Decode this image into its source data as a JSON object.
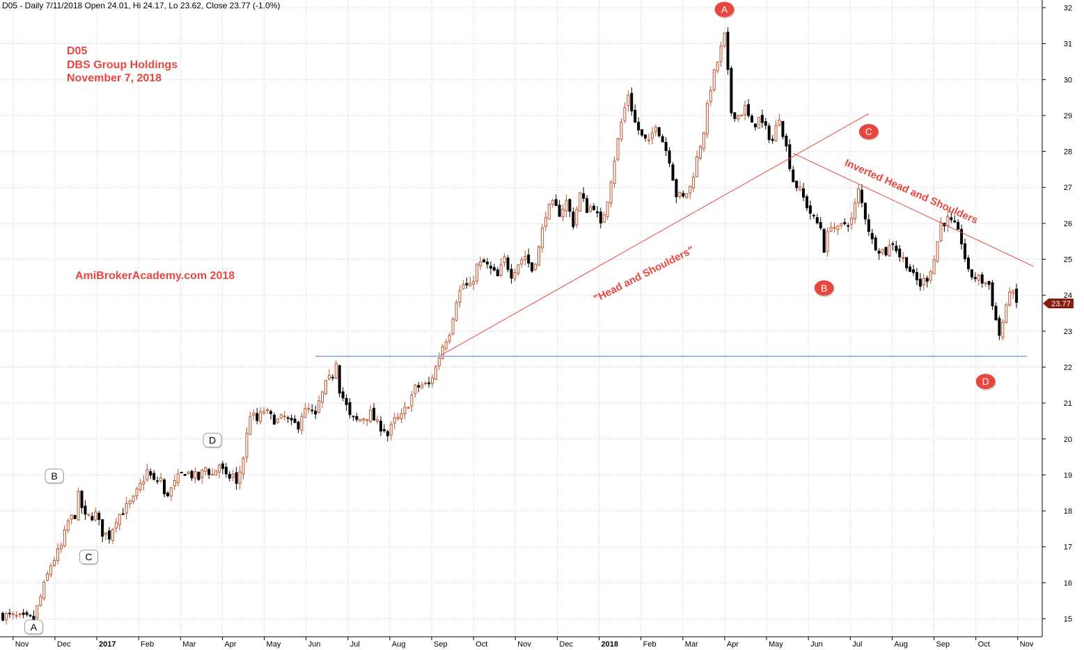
{
  "header": {
    "text": "D05 - Daily 7/11/2018 Open 24.01, Hi 24.17, Lo 23.62, Close 23.77 (-1.0%)"
  },
  "title_block": {
    "symbol": "D05",
    "company": "DBS Group Holdings",
    "date": "November 7, 2018"
  },
  "watermark": "AmiBrokerAcademy.com  2018",
  "colors": {
    "up_candle": "#c0502a",
    "down_candle": "#000000",
    "trendline": "#e8473f",
    "support_line": "#9fb8e6",
    "grid": "#c8c8c8",
    "annotation": "#e8473f",
    "last_price_badge": "#8b1a12"
  },
  "chart_data": {
    "type": "candlestick",
    "ylim": [
      14.5,
      32.3
    ],
    "y_ticks": [
      15,
      16,
      17,
      18,
      19,
      20,
      21,
      22,
      23,
      24,
      25,
      26,
      27,
      28,
      29,
      30,
      31,
      32
    ],
    "x_axis_months": [
      {
        "label": "Nov",
        "bold": false
      },
      {
        "label": "Dec",
        "bold": false
      },
      {
        "label": "2017",
        "bold": true
      },
      {
        "label": "Feb",
        "bold": false
      },
      {
        "label": "Mar",
        "bold": false
      },
      {
        "label": "Apr",
        "bold": false
      },
      {
        "label": "May",
        "bold": false
      },
      {
        "label": "Jun",
        "bold": false
      },
      {
        "label": "Jul",
        "bold": false
      },
      {
        "label": "Aug",
        "bold": false
      },
      {
        "label": "Sep",
        "bold": false
      },
      {
        "label": "Oct",
        "bold": false
      },
      {
        "label": "Nov",
        "bold": false
      },
      {
        "label": "Dec",
        "bold": false
      },
      {
        "label": "2018",
        "bold": true
      },
      {
        "label": "Feb",
        "bold": false
      },
      {
        "label": "Mar",
        "bold": false
      },
      {
        "label": "Apr",
        "bold": false
      },
      {
        "label": "May",
        "bold": false
      },
      {
        "label": "Jun",
        "bold": false
      },
      {
        "label": "Jul",
        "bold": false
      },
      {
        "label": "Aug",
        "bold": false
      },
      {
        "label": "Sep",
        "bold": false
      },
      {
        "label": "Oct",
        "bold": false
      },
      {
        "label": "Nov",
        "bold": false
      }
    ],
    "last_price": 23.77,
    "last_price_label": "23.77",
    "price_path": [
      [
        0,
        15.1
      ],
      [
        6,
        15.0
      ],
      [
        9,
        15.0
      ],
      [
        11,
        15.6
      ],
      [
        14,
        16.5
      ],
      [
        17,
        17.0
      ],
      [
        19,
        17.7
      ],
      [
        21,
        17.9
      ],
      [
        22,
        18.4
      ],
      [
        24,
        17.8
      ],
      [
        27,
        17.9
      ],
      [
        29,
        17.4
      ],
      [
        31,
        17.3
      ],
      [
        33,
        17.8
      ],
      [
        35,
        18.0
      ],
      [
        37,
        18.2
      ],
      [
        38,
        18.3
      ],
      [
        40,
        18.7
      ],
      [
        42,
        19.1
      ],
      [
        44,
        18.8
      ],
      [
        46,
        18.9
      ],
      [
        47,
        18.4
      ],
      [
        49,
        18.6
      ],
      [
        51,
        18.9
      ],
      [
        53,
        19.1
      ],
      [
        55,
        19.0
      ],
      [
        57,
        18.9
      ],
      [
        59,
        19.2
      ],
      [
        61,
        19.0
      ],
      [
        63,
        19.3
      ],
      [
        65,
        18.9
      ],
      [
        67,
        19.0
      ],
      [
        68,
        18.7
      ],
      [
        70,
        19.5
      ],
      [
        72,
        20.7
      ],
      [
        74,
        20.5
      ],
      [
        76,
        20.8
      ],
      [
        78,
        20.6
      ],
      [
        80,
        20.5
      ],
      [
        82,
        20.6
      ],
      [
        84,
        20.4
      ],
      [
        86,
        20.4
      ],
      [
        87,
        20.7
      ],
      [
        89,
        20.8
      ],
      [
        91,
        20.6
      ],
      [
        92,
        21.0
      ],
      [
        94,
        21.5
      ],
      [
        96,
        21.8
      ],
      [
        97,
        22.2
      ],
      [
        98,
        21.4
      ],
      [
        100,
        20.9
      ],
      [
        101,
        20.6
      ],
      [
        103,
        20.5
      ],
      [
        105,
        20.6
      ],
      [
        107,
        20.7
      ],
      [
        109,
        20.4
      ],
      [
        111,
        20.3
      ],
      [
        112,
        20.1
      ],
      [
        114,
        20.5
      ],
      [
        116,
        20.6
      ],
      [
        118,
        21.0
      ],
      [
        120,
        21.4
      ],
      [
        122,
        21.5
      ],
      [
        124,
        21.5
      ],
      [
        126,
        22.0
      ],
      [
        128,
        22.6
      ],
      [
        130,
        23.0
      ],
      [
        132,
        23.9
      ],
      [
        134,
        24.3
      ],
      [
        136,
        24.2
      ],
      [
        138,
        24.8
      ],
      [
        140,
        24.9
      ],
      [
        142,
        24.7
      ],
      [
        144,
        24.5
      ],
      [
        146,
        25.0
      ],
      [
        148,
        24.6
      ],
      [
        150,
        24.9
      ],
      [
        152,
        25.1
      ],
      [
        154,
        24.7
      ],
      [
        156,
        25.3
      ],
      [
        158,
        26.3
      ],
      [
        160,
        26.5
      ],
      [
        162,
        26.3
      ],
      [
        164,
        26.6
      ],
      [
        166,
        26.0
      ],
      [
        168,
        26.8
      ],
      [
        170,
        26.4
      ],
      [
        172,
        26.5
      ],
      [
        174,
        25.9
      ],
      [
        176,
        26.7
      ],
      [
        178,
        27.8
      ],
      [
        180,
        28.8
      ],
      [
        182,
        29.6
      ],
      [
        184,
        28.8
      ],
      [
        186,
        28.4
      ],
      [
        188,
        28.2
      ],
      [
        190,
        28.8
      ],
      [
        192,
        28.3
      ],
      [
        194,
        27.8
      ],
      [
        196,
        26.8
      ],
      [
        198,
        26.7
      ],
      [
        200,
        27.0
      ],
      [
        202,
        27.8
      ],
      [
        204,
        28.6
      ],
      [
        206,
        29.8
      ],
      [
        208,
        30.5
      ],
      [
        210,
        31.2
      ],
      [
        212,
        29.1
      ],
      [
        214,
        29.0
      ],
      [
        216,
        29.2
      ],
      [
        218,
        28.7
      ],
      [
        220,
        28.9
      ],
      [
        222,
        28.6
      ],
      [
        224,
        28.3
      ],
      [
        226,
        29.0
      ],
      [
        228,
        28.1
      ],
      [
        230,
        27.2
      ],
      [
        232,
        26.9
      ],
      [
        234,
        26.5
      ],
      [
        236,
        26.1
      ],
      [
        238,
        25.9
      ],
      [
        239,
        25.3
      ],
      [
        241,
        26.0
      ],
      [
        243,
        25.8
      ],
      [
        245,
        26.0
      ],
      [
        247,
        26.1
      ],
      [
        249,
        26.9
      ],
      [
        251,
        26.2
      ],
      [
        253,
        25.5
      ],
      [
        255,
        25.3
      ],
      [
        257,
        25.2
      ],
      [
        259,
        25.5
      ],
      [
        261,
        25.1
      ],
      [
        263,
        24.9
      ],
      [
        265,
        24.5
      ],
      [
        267,
        24.3
      ],
      [
        269,
        24.5
      ],
      [
        271,
        25.0
      ],
      [
        273,
        26.0
      ],
      [
        275,
        26.1
      ],
      [
        277,
        25.9
      ],
      [
        279,
        25.5
      ],
      [
        281,
        24.6
      ],
      [
        283,
        24.5
      ],
      [
        285,
        24.4
      ],
      [
        287,
        24.3
      ],
      [
        289,
        23.3
      ],
      [
        290,
        22.9
      ],
      [
        292,
        23.6
      ],
      [
        293,
        24.2
      ],
      [
        295,
        23.77
      ]
    ],
    "lines": [
      {
        "type": "trendline",
        "name": "Head and Shoulders",
        "from": [
          127,
          22.3
        ],
        "to": [
          252,
          29.05
        ]
      },
      {
        "type": "trendline",
        "name": "Inverted Head and Shoulders",
        "from": [
          230,
          27.95
        ],
        "to": [
          300,
          24.8
        ]
      },
      {
        "type": "support",
        "from": [
          91,
          22.3
        ],
        "to": [
          298,
          22.3
        ]
      }
    ],
    "annotations": [
      {
        "label": "\"Head and Shoulders\"",
        "at": [
          187,
          24.5
        ],
        "angle": -27
      },
      {
        "label": "Inverted Head and Shoulders",
        "at": [
          264,
          26.8
        ],
        "angle": 24
      }
    ],
    "markers": [
      {
        "label": "A",
        "style": "red",
        "at": [
          210,
          31.95
        ]
      },
      {
        "label": "B",
        "style": "red",
        "at": [
          239,
          24.2
        ]
      },
      {
        "label": "C",
        "style": "red",
        "at": [
          252,
          28.55
        ]
      },
      {
        "label": "D",
        "style": "red",
        "at": [
          286,
          21.6
        ]
      },
      {
        "label": "A",
        "style": "white",
        "at": [
          9,
          14.75
        ]
      },
      {
        "label": "B",
        "style": "white",
        "at": [
          15,
          18.95
        ]
      },
      {
        "label": "C",
        "style": "white",
        "at": [
          25,
          16.7
        ]
      },
      {
        "label": "D",
        "style": "white",
        "at": [
          61,
          19.95
        ]
      }
    ]
  }
}
